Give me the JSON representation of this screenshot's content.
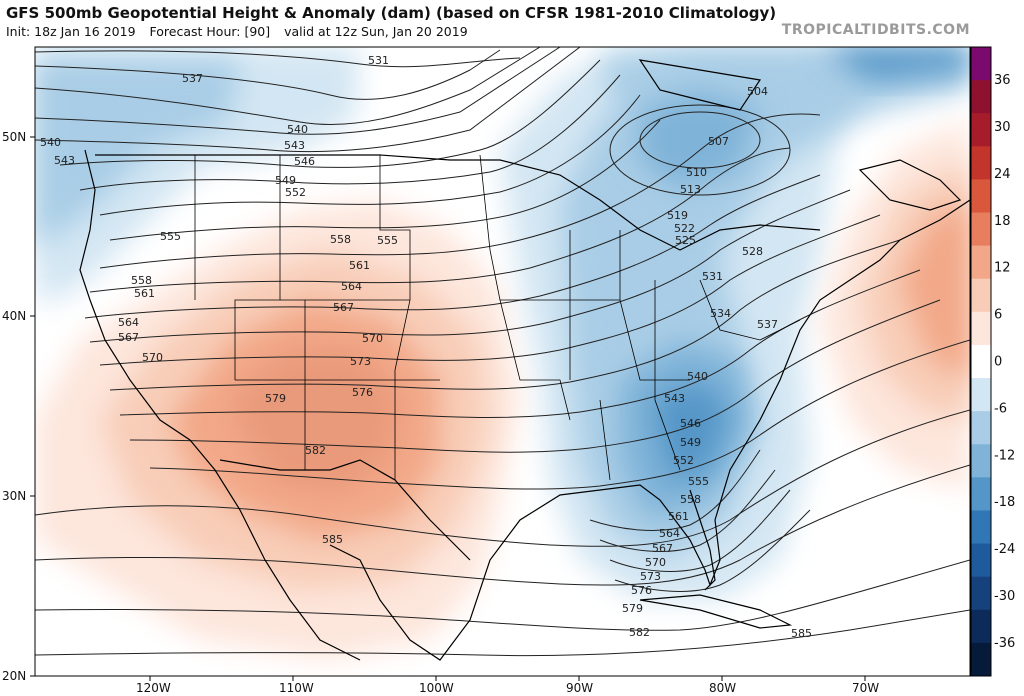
{
  "header": {
    "title": "GFS 500mb Geopotential Height & Anomaly (dam) (based on CFSR 1981-2010 Climatology)",
    "init": "Init: 18z Jan 16 2019",
    "forecast_hour": "Forecast Hour: [90]",
    "valid": "valid at 12z Sun, Jan 20 2019",
    "brand": "TROPICALTIDBITS.COM"
  },
  "axes": {
    "latitudes": [
      "50N",
      "40N",
      "30N",
      "20N"
    ],
    "longitudes": [
      "120W",
      "110W",
      "100W",
      "90W",
      "80W",
      "70W"
    ]
  },
  "colorbar": {
    "labels": [
      "36",
      "30",
      "24",
      "18",
      "12",
      "6",
      "0",
      "-6",
      "-12",
      "-18",
      "-24",
      "-30",
      "-36"
    ],
    "colors": [
      "#7b0a6e",
      "#8e1230",
      "#a61c2b",
      "#c3352b",
      "#d9583b",
      "#e77f5f",
      "#f2a888",
      "#f8cdb8",
      "#fde6dc",
      "#ffffff",
      "#d3e6f3",
      "#a9cde6",
      "#7fb3d8",
      "#5596c8",
      "#3277b5",
      "#1f5a9c",
      "#15417c",
      "#0c2b5a",
      "#061a3a"
    ]
  },
  "contours": [
    "504",
    "507",
    "510",
    "513",
    "519",
    "522",
    "525",
    "528",
    "531",
    "534",
    "537",
    "540",
    "543",
    "546",
    "549",
    "552",
    "555",
    "558",
    "561",
    "564",
    "567",
    "570",
    "573",
    "576",
    "579",
    "582",
    "585"
  ],
  "map_labels": {
    "west": [
      "537",
      "531",
      "540",
      "543",
      "546",
      "549",
      "552",
      "555",
      "558",
      "561",
      "564",
      "567",
      "570",
      "573",
      "576",
      "579",
      "582",
      "585",
      "540",
      "543",
      "555",
      "558",
      "561",
      "564",
      "567",
      "570"
    ],
    "east": [
      "504",
      "507",
      "510",
      "513",
      "519",
      "522",
      "525",
      "528",
      "531",
      "534",
      "537",
      "540",
      "543",
      "546",
      "549",
      "552",
      "555",
      "558",
      "561",
      "564",
      "567",
      "570",
      "573",
      "576",
      "579",
      "582",
      "585"
    ]
  },
  "anomaly_regions": [
    {
      "name": "western-ridge",
      "sign": "positive",
      "peak_dam": 15
    },
    {
      "name": "eastern-trough",
      "sign": "negative",
      "peak_dam": -20
    },
    {
      "name": "atlantic-ridge",
      "sign": "positive",
      "peak_dam": 14
    },
    {
      "name": "hudson-trough",
      "sign": "negative",
      "peak_dam": -16
    },
    {
      "name": "pacific-trough",
      "sign": "negative",
      "peak_dam": -12
    }
  ]
}
